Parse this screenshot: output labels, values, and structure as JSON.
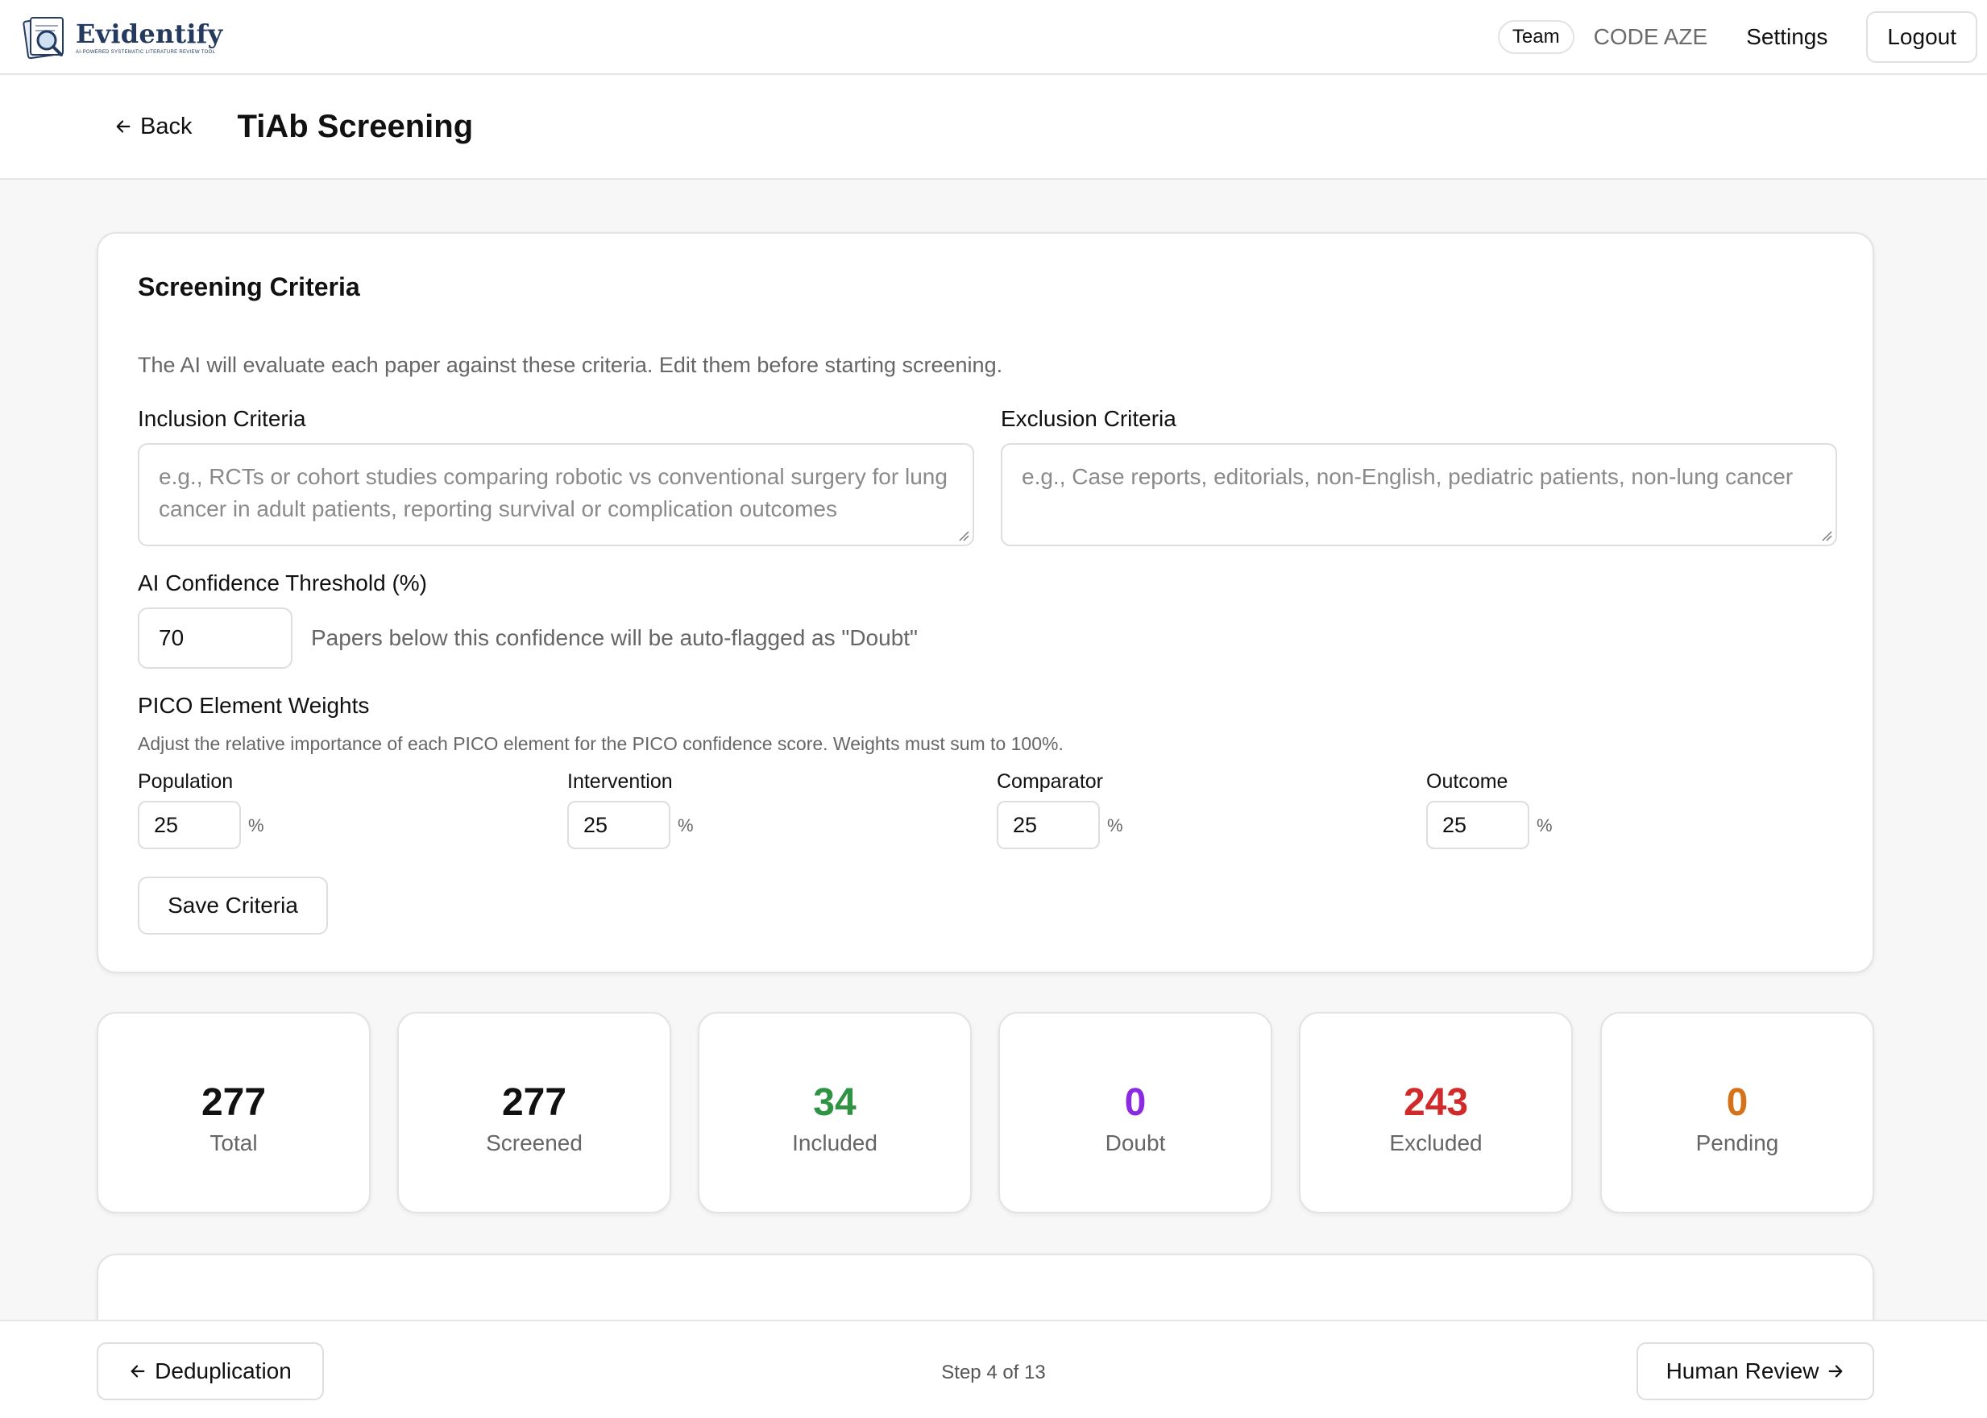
{
  "brand": {
    "name": "Evidentify",
    "tagline": "AI-POWERED SYSTEMATIC LITERATURE REVIEW TOOL"
  },
  "nav": {
    "team_label": "Team",
    "code_label": "CODE AZE",
    "settings_label": "Settings",
    "logout_label": "Logout"
  },
  "header": {
    "back_label": "Back",
    "title": "TiAb Screening"
  },
  "criteria": {
    "title": "Screening Criteria",
    "description": "The AI will evaluate each paper against these criteria. Edit them before starting screening.",
    "inclusion": {
      "label": "Inclusion Criteria",
      "placeholder": "e.g., RCTs or cohort studies comparing robotic vs conventional surgery for lung cancer in adult patients, reporting survival or complication outcomes"
    },
    "exclusion": {
      "label": "Exclusion Criteria",
      "placeholder": "e.g., Case reports, editorials, non-English, pediatric patients, non-lung cancer"
    },
    "threshold": {
      "label": "AI Confidence Threshold (%)",
      "value": "70",
      "hint": "Papers below this confidence will be auto-flagged as \"Doubt\""
    },
    "pico": {
      "title": "PICO Element Weights",
      "description": "Adjust the relative importance of each PICO element for the PICO confidence score. Weights must sum to 100%.",
      "unit": "%",
      "weights": [
        {
          "label": "Population",
          "value": "25"
        },
        {
          "label": "Intervention",
          "value": "25"
        },
        {
          "label": "Comparator",
          "value": "25"
        },
        {
          "label": "Outcome",
          "value": "25"
        }
      ]
    },
    "save_label": "Save Criteria"
  },
  "stats": [
    {
      "value": "277",
      "label": "Total",
      "color": "#111111"
    },
    {
      "value": "277",
      "label": "Screened",
      "color": "#111111"
    },
    {
      "value": "34",
      "label": "Included",
      "color": "#2e9444"
    },
    {
      "value": "0",
      "label": "Doubt",
      "color": "#8a2be2"
    },
    {
      "value": "243",
      "label": "Excluded",
      "color": "#d12a2a"
    },
    {
      "value": "0",
      "label": "Pending",
      "color": "#d5721a"
    }
  ],
  "footer": {
    "prev_label": "Deduplication",
    "step_text": "Step 4 of 13",
    "next_label": "Human Review"
  }
}
